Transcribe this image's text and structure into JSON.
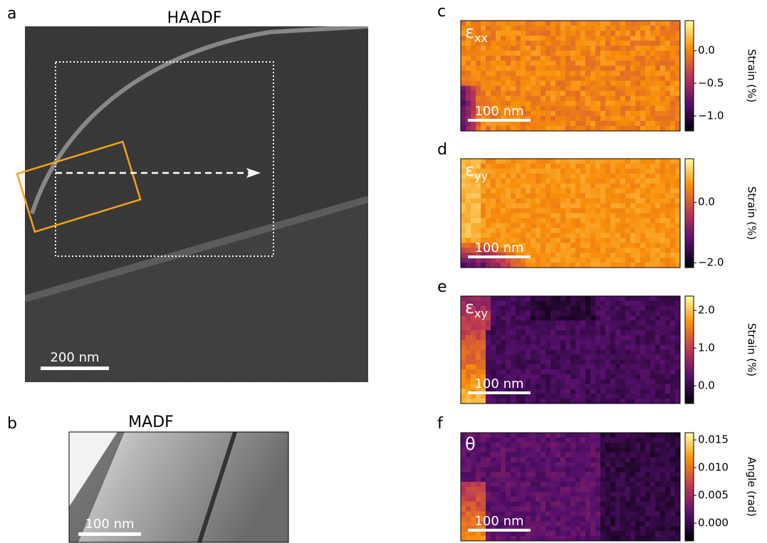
{
  "panels": {
    "a": {
      "label": "a",
      "title": "HAADF",
      "scale_bar": "200 nm"
    },
    "b": {
      "label": "b",
      "title": "MADF",
      "scale_bar": "100 nm"
    },
    "c": {
      "label": "c",
      "symbol": "ε",
      "subscript": "xx",
      "scale_bar": "100 nm",
      "colorbar": {
        "label": "Strain (%)",
        "lim": [
          -1.23,
          0.46
        ],
        "ticks": [
          {
            "value": 0,
            "label": "0.0"
          },
          {
            "value": -0.5,
            "label": "−0.5"
          },
          {
            "value": -1,
            "label": "−1.0"
          }
        ]
      }
    },
    "d": {
      "label": "d",
      "symbol": "ε",
      "subscript": "yy",
      "scale_bar": "100 nm",
      "colorbar": {
        "label": "Strain (%)",
        "lim": [
          -2.16,
          1.44
        ],
        "ticks": [
          {
            "value": 0,
            "label": "0.0"
          },
          {
            "value": -2,
            "label": "−2.0"
          }
        ]
      }
    },
    "e": {
      "label": "e",
      "symbol": "ε",
      "subscript": "xy",
      "scale_bar": "100 nm",
      "colorbar": {
        "label": "Strain (%)",
        "lim": [
          -0.47,
          2.38
        ],
        "ticks": [
          {
            "value": 2,
            "label": "2.0"
          },
          {
            "value": 1,
            "label": "1.0"
          },
          {
            "value": 0,
            "label": "0.0"
          }
        ]
      }
    },
    "f": {
      "label": "f",
      "symbol": "θ",
      "scale_bar": "100 nm",
      "colorbar": {
        "label": "Angle (rad)",
        "lim": [
          -0.0032,
          0.0163
        ],
        "ticks": [
          0.015,
          {
            "value": 0.01,
            "label": "0.010"
          },
          0.005,
          {
            "value": 0,
            "label": "0.000"
          }
        ]
      }
    }
  }
}
